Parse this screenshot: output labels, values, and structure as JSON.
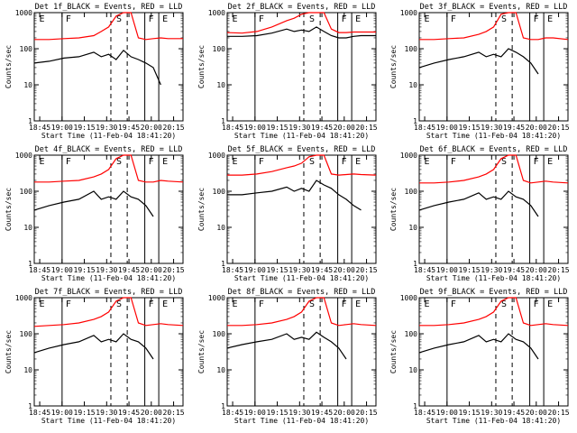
{
  "chart_data": {
    "type": "line",
    "layout_rows": 3,
    "layout_cols": 3,
    "ylabel": "Counts/sec",
    "xlabel": "Start Time (11-Feb-04 18:41:20)",
    "y_scale": "log",
    "ylim": [
      1,
      1000
    ],
    "y_ticks": [
      "1",
      "10",
      "100",
      "1000"
    ],
    "x_ticks": [
      "18:45",
      "19:00",
      "19:15",
      "19:30",
      "19:45",
      "20:00",
      "20:15"
    ],
    "x_tick_minutes": [
      3.67,
      18.67,
      33.67,
      48.67,
      63.67,
      78.67,
      93.67
    ],
    "xlim_minutes": [
      0,
      100
    ],
    "colors": {
      "events": "#000000",
      "lld": "#ff0000"
    },
    "markers": [
      "E",
      "F",
      "S",
      "F",
      "E"
    ],
    "panels": [
      {
        "title": "Det 1f_BLACK = Events, RED = LLD",
        "solid_lines_min": [
          18.7,
          74.3,
          83.7
        ],
        "dashed_lines_min": [
          51.5,
          62.5
        ],
        "black": {
          "x": [
            0,
            10,
            20,
            30,
            40,
            45,
            50,
            55,
            60,
            65,
            70,
            75,
            80,
            85
          ],
          "y": [
            40,
            45,
            55,
            60,
            80,
            60,
            70,
            50,
            90,
            60,
            50,
            40,
            30,
            10
          ]
        },
        "red": {
          "x": [
            0,
            10,
            20,
            30,
            40,
            45,
            50,
            55,
            60,
            65,
            70,
            75,
            80,
            85,
            90,
            100
          ],
          "y": [
            180,
            180,
            190,
            200,
            230,
            300,
            400,
            800,
            1000,
            1000,
            200,
            180,
            190,
            200,
            190,
            190
          ]
        }
      },
      {
        "title": "Det 2f_BLACK = Events, RED = LLD",
        "solid_lines_min": [
          18.7,
          74.3,
          83.7
        ],
        "dashed_lines_min": [
          51.5,
          62.5
        ],
        "black": {
          "x": [
            0,
            10,
            20,
            30,
            40,
            45,
            50,
            55,
            60,
            65,
            70,
            75,
            80,
            85,
            90,
            100
          ],
          "y": [
            220,
            220,
            230,
            270,
            350,
            300,
            330,
            300,
            400,
            300,
            230,
            200,
            200,
            220,
            230,
            230
          ]
        },
        "red": {
          "x": [
            0,
            10,
            20,
            30,
            40,
            45,
            50,
            55,
            60,
            65,
            70,
            75,
            80,
            85,
            90,
            100
          ],
          "y": [
            280,
            270,
            300,
            400,
            600,
            700,
            900,
            1000,
            1000,
            1000,
            350,
            280,
            280,
            290,
            290,
            290
          ]
        }
      },
      {
        "title": "Det 3f_BLACK = Events, RED = LLD",
        "solid_lines_min": [
          18.7,
          74.3,
          83.7
        ],
        "dashed_lines_min": [
          51.5,
          62.5
        ],
        "black": {
          "x": [
            0,
            10,
            20,
            30,
            40,
            45,
            50,
            55,
            60,
            65,
            70,
            75,
            80
          ],
          "y": [
            30,
            40,
            50,
            60,
            80,
            60,
            70,
            60,
            100,
            80,
            60,
            40,
            20
          ]
        },
        "red": {
          "x": [
            0,
            10,
            20,
            30,
            40,
            45,
            50,
            55,
            60,
            65,
            70,
            75,
            80,
            85,
            90,
            100
          ],
          "y": [
            180,
            180,
            190,
            200,
            250,
            300,
            400,
            900,
            1000,
            1000,
            200,
            180,
            180,
            200,
            200,
            180
          ]
        }
      },
      {
        "title": "Det 4f_BLACK = Events, RED = LLD",
        "solid_lines_min": [
          18.7,
          74.3,
          83.7
        ],
        "dashed_lines_min": [
          51.5,
          62.5
        ],
        "black": {
          "x": [
            0,
            10,
            20,
            30,
            40,
            45,
            50,
            55,
            60,
            65,
            70,
            75,
            80
          ],
          "y": [
            30,
            40,
            50,
            60,
            100,
            60,
            70,
            60,
            100,
            70,
            60,
            40,
            20
          ]
        },
        "red": {
          "x": [
            0,
            10,
            20,
            30,
            40,
            45,
            50,
            55,
            60,
            65,
            70,
            75,
            80,
            85,
            90,
            100
          ],
          "y": [
            180,
            180,
            190,
            200,
            250,
            300,
            400,
            800,
            1000,
            1000,
            200,
            180,
            180,
            200,
            190,
            180
          ]
        }
      },
      {
        "title": "Det 5f_BLACK = Events, RED = LLD",
        "solid_lines_min": [
          18.7,
          74.3,
          83.7
        ],
        "dashed_lines_min": [
          51.5,
          62.5
        ],
        "black": {
          "x": [
            0,
            10,
            20,
            30,
            40,
            45,
            50,
            55,
            60,
            65,
            70,
            75,
            80,
            85,
            90
          ],
          "y": [
            80,
            80,
            90,
            100,
            130,
            100,
            120,
            100,
            200,
            150,
            120,
            80,
            60,
            40,
            30
          ]
        },
        "red": {
          "x": [
            0,
            10,
            20,
            30,
            40,
            45,
            50,
            55,
            60,
            65,
            70,
            75,
            80,
            85,
            90,
            100
          ],
          "y": [
            280,
            280,
            300,
            350,
            450,
            500,
            600,
            900,
            1000,
            1000,
            300,
            280,
            290,
            300,
            290,
            280
          ]
        }
      },
      {
        "title": "Det 6f_BLACK = Events, RED = LLD",
        "solid_lines_min": [
          18.7,
          74.3,
          83.7
        ],
        "dashed_lines_min": [
          51.5,
          62.5
        ],
        "black": {
          "x": [
            0,
            10,
            20,
            30,
            40,
            45,
            50,
            55,
            60,
            65,
            70,
            75,
            80
          ],
          "y": [
            30,
            40,
            50,
            60,
            90,
            60,
            70,
            60,
            100,
            70,
            60,
            40,
            20
          ]
        },
        "red": {
          "x": [
            0,
            10,
            20,
            30,
            40,
            45,
            50,
            55,
            60,
            65,
            70,
            75,
            80,
            85,
            90,
            100
          ],
          "y": [
            170,
            170,
            180,
            200,
            250,
            300,
            400,
            800,
            1000,
            1000,
            200,
            170,
            180,
            190,
            180,
            170
          ]
        }
      },
      {
        "title": "Det 7f_BLACK = Events, RED = LLD",
        "solid_lines_min": [
          18.7,
          74.3,
          83.7
        ],
        "dashed_lines_min": [
          51.5,
          62.5
        ],
        "black": {
          "x": [
            0,
            10,
            20,
            30,
            40,
            45,
            50,
            55,
            60,
            65,
            70,
            75,
            80
          ],
          "y": [
            30,
            40,
            50,
            60,
            90,
            60,
            70,
            60,
            100,
            70,
            60,
            40,
            20
          ]
        },
        "red": {
          "x": [
            0,
            10,
            20,
            30,
            40,
            45,
            50,
            55,
            60,
            65,
            70,
            75,
            80,
            85,
            90,
            100
          ],
          "y": [
            160,
            170,
            180,
            200,
            250,
            300,
            400,
            800,
            1000,
            1000,
            200,
            170,
            180,
            190,
            180,
            170
          ]
        }
      },
      {
        "title": "Det 8f_BLACK = Events, RED = LLD",
        "solid_lines_min": [
          18.7,
          74.3,
          83.7
        ],
        "dashed_lines_min": [
          51.5,
          62.5
        ],
        "black": {
          "x": [
            0,
            10,
            20,
            30,
            40,
            45,
            50,
            55,
            60,
            65,
            70,
            75,
            80
          ],
          "y": [
            40,
            50,
            60,
            70,
            100,
            70,
            80,
            70,
            110,
            80,
            60,
            40,
            20
          ]
        },
        "red": {
          "x": [
            0,
            10,
            20,
            30,
            40,
            45,
            50,
            55,
            60,
            65,
            70,
            75,
            80,
            85,
            90,
            100
          ],
          "y": [
            170,
            170,
            180,
            200,
            250,
            300,
            400,
            800,
            1000,
            1000,
            200,
            170,
            180,
            190,
            180,
            170
          ]
        }
      },
      {
        "title": "Det 9f_BLACK = Events, RED = LLD",
        "solid_lines_min": [
          18.7,
          74.3,
          83.7
        ],
        "dashed_lines_min": [
          51.5,
          62.5
        ],
        "black": {
          "x": [
            0,
            10,
            20,
            30,
            40,
            45,
            50,
            55,
            60,
            65,
            70,
            75,
            80
          ],
          "y": [
            30,
            40,
            50,
            60,
            90,
            60,
            70,
            60,
            100,
            70,
            60,
            40,
            20
          ]
        },
        "red": {
          "x": [
            0,
            10,
            20,
            30,
            40,
            45,
            50,
            55,
            60,
            65,
            70,
            75,
            80,
            85,
            90,
            100
          ],
          "y": [
            170,
            170,
            180,
            200,
            250,
            300,
            400,
            800,
            1000,
            1000,
            200,
            170,
            180,
            190,
            180,
            170
          ]
        }
      }
    ]
  }
}
